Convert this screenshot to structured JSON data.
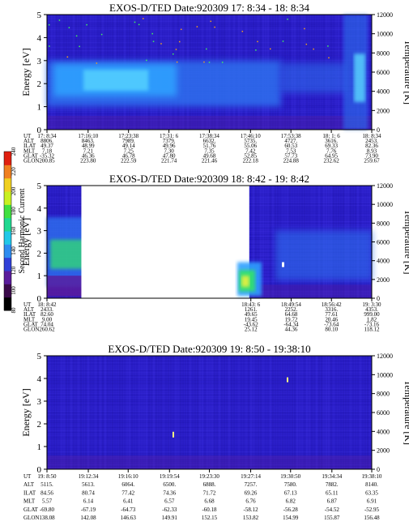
{
  "colors": {
    "background": "#2a1ec8",
    "band_light": "#2fa0ff",
    "band_mid": "#2f70ee",
    "band_core": "#5ad8ff",
    "intense_green": "#30e070",
    "intense_yellow": "#e8f040",
    "purple_dark": "#5a1c9c"
  },
  "colorbar": {
    "label": "Second Harmonic Current",
    "ticks": [
      "80",
      "100",
      "120",
      "140",
      "160",
      "180",
      "200",
      "220",
      "240"
    ],
    "colors": [
      "#000000",
      "#3a0a4a",
      "#5a1c9c",
      "#3040d8",
      "#2d8cf0",
      "#20c8e8",
      "#20d890",
      "#40e040",
      "#c8f020",
      "#f0d020",
      "#f08020",
      "#e02010"
    ]
  },
  "chart_data": [
    {
      "type": "heatmap",
      "title": "EXOS-D/TED    Date:920309  17: 8:34 - 18: 8:34",
      "ylabel": "Energy [eV]",
      "ylabel_right": "Temperature [K]",
      "ylim": [
        0,
        5
      ],
      "ylim_right": [
        0,
        12000
      ],
      "yticks": [
        "0",
        "1",
        "2",
        "3",
        "4",
        "5"
      ],
      "yticks_right": [
        "0",
        "2000",
        "4000",
        "6000",
        "8000",
        "10000",
        "12000"
      ],
      "orbit_rows": [
        "UT",
        "ALT",
        "ILAT",
        "MLT",
        "GLAT",
        "GLON"
      ],
      "orbit_values": [
        [
          "17: 8:34",
          "8806.",
          "49.37",
          "7.18",
          "-35.32",
          "200.85"
        ],
        [
          "17:16:10",
          "8463.",
          "48.99",
          "7.21",
          "46.36",
          "223.80"
        ],
        [
          "17:23:38",
          "7989.",
          "49.14",
          "7.25",
          "46.78",
          "222.59"
        ],
        [
          "17:31: 6",
          "7379.",
          "49.96",
          "7.30",
          "47.80",
          "221.74"
        ],
        [
          "17:38:34",
          "6632.",
          "51.76",
          "7.35",
          "49.68",
          "221.46"
        ],
        [
          "17:46:10",
          "5735.",
          "55.06",
          "7.42",
          "52.85",
          "222.18"
        ],
        [
          "17:53:38",
          "4727.",
          "60.53",
          "7.53",
          "57.73",
          "224.88"
        ],
        [
          "18: 1: 6",
          "3616.",
          "69.33",
          "7.76",
          "64.95",
          "232.62"
        ],
        [
          "18: 8:34",
          "2453.",
          "82.36",
          "8.93",
          "73.90",
          "259.67"
        ]
      ],
      "data_gaps": []
    },
    {
      "type": "heatmap",
      "title": "EXOS-D/TED    Date:920309  18: 8:42 - 19: 8:42",
      "ylabel": "Energy [eV]",
      "ylabel_right": "Temperature [K]",
      "ylim": [
        0,
        5
      ],
      "ylim_right": [
        0,
        12000
      ],
      "yticks": [
        "0",
        "1",
        "2",
        "3",
        "4",
        "5"
      ],
      "yticks_right": [
        "0",
        "2000",
        "4000",
        "6000",
        "8000",
        "10000",
        "12000"
      ],
      "orbit_rows": [
        "UT",
        "ALT",
        "ILAT",
        "MLT",
        "GLAT",
        "GLON"
      ],
      "orbit_values": [
        [
          "18: 8:42",
          "2433.",
          "82.60",
          "9.00",
          "74.04",
          "260.62"
        ],
        [
          "18:43: 6",
          "1261.",
          "49.65",
          "19.45",
          "-43.62",
          "25.12"
        ],
        [
          "18:49:54",
          "2252.",
          "64.68",
          "19.72",
          "-64.34",
          "44.36"
        ],
        [
          "18:56:42",
          "3316.",
          "77.61",
          "20.46",
          "-73.64",
          "80.10"
        ],
        [
          "19: 3:30",
          "4353.",
          "999.00",
          "1.82",
          "-73.16",
          "118.12"
        ]
      ],
      "data_gaps": [
        {
          "from": "18:14:30",
          "to": "18:42:50"
        }
      ]
    },
    {
      "type": "heatmap",
      "title": "EXOS-D/TED    Date:920309  19: 8:50 - 19:38:10",
      "ylabel": "Energy [eV]",
      "ylabel_right": "Temperature [K]",
      "ylim": [
        0,
        5
      ],
      "ylim_right": [
        0,
        12000
      ],
      "yticks": [
        "0",
        "1",
        "2",
        "3",
        "4",
        "5"
      ],
      "yticks_right": [
        "0",
        "2000",
        "4000",
        "6000",
        "8000",
        "10000",
        "12000"
      ],
      "orbit_rows": [
        "UT",
        "ALT",
        "ILAT",
        "MLT",
        "GLAT",
        "GLON"
      ],
      "orbit_values": [
        [
          "19: 8:50",
          "5115.",
          "84.56",
          "5.57",
          "-69.80",
          "138.08"
        ],
        [
          "19:12:34",
          "5613.",
          "80.74",
          "6.14",
          "-67.19",
          "142.08"
        ],
        [
          "19:16:10",
          "6064.",
          "77.42",
          "6.41",
          "-64.73",
          "146.63"
        ],
        [
          "19:19:54",
          "6500.",
          "74.36",
          "6.57",
          "-62.33",
          "149.91"
        ],
        [
          "19:23:30",
          "6888.",
          "71.72",
          "6.68",
          "-60.18",
          "152.15"
        ],
        [
          "19:27:14",
          "7257.",
          "69.26",
          "6.76",
          "-58.12",
          "153.82"
        ],
        [
          "19:30:50",
          "7580.",
          "67.13",
          "6.82",
          "-56.28",
          "154.99"
        ],
        [
          "19:34:34",
          "7882.",
          "65.11",
          "6.87",
          "-54.52",
          "155.87"
        ],
        [
          "19:38:10",
          "8140.",
          "63.35",
          "6.91",
          "-52.95",
          "156.48"
        ]
      ],
      "data_gaps": []
    }
  ]
}
